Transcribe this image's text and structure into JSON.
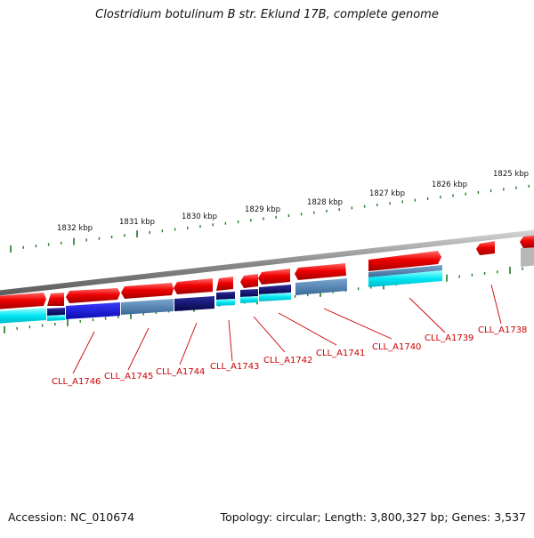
{
  "title": "Clostridium botulinum B str. Eklund 17B, complete genome",
  "footer": {
    "accession": "Accession: NC_010674",
    "summary": "Topology: circular; Length: 3,800,327 bp; Genes: 3,537"
  },
  "colors": {
    "forward_gene": "#e00000",
    "cds_dark": "#0b0b6e",
    "cds_blue": "#1010d0",
    "cds_steel": "#4a7fb0",
    "cds_cyan": "#00e8f0",
    "backbone": "#8a8a8a",
    "tick": "#1e7a1e",
    "label": "#cc0000"
  },
  "scale_labels": [
    "1832 kbp",
    "1831 kbp",
    "1830 kbp",
    "1829 kbp",
    "1828 kbp",
    "1827 kbp",
    "1826 kbp",
    "1825 kbp"
  ],
  "gene_labels": [
    "CLL_A1746",
    "CLL_A1745",
    "CLL_A1744",
    "CLL_A1743",
    "CLL_A1742",
    "CLL_A1741",
    "CLL_A1740",
    "CLL_A1739",
    "CLL_A1738"
  ]
}
